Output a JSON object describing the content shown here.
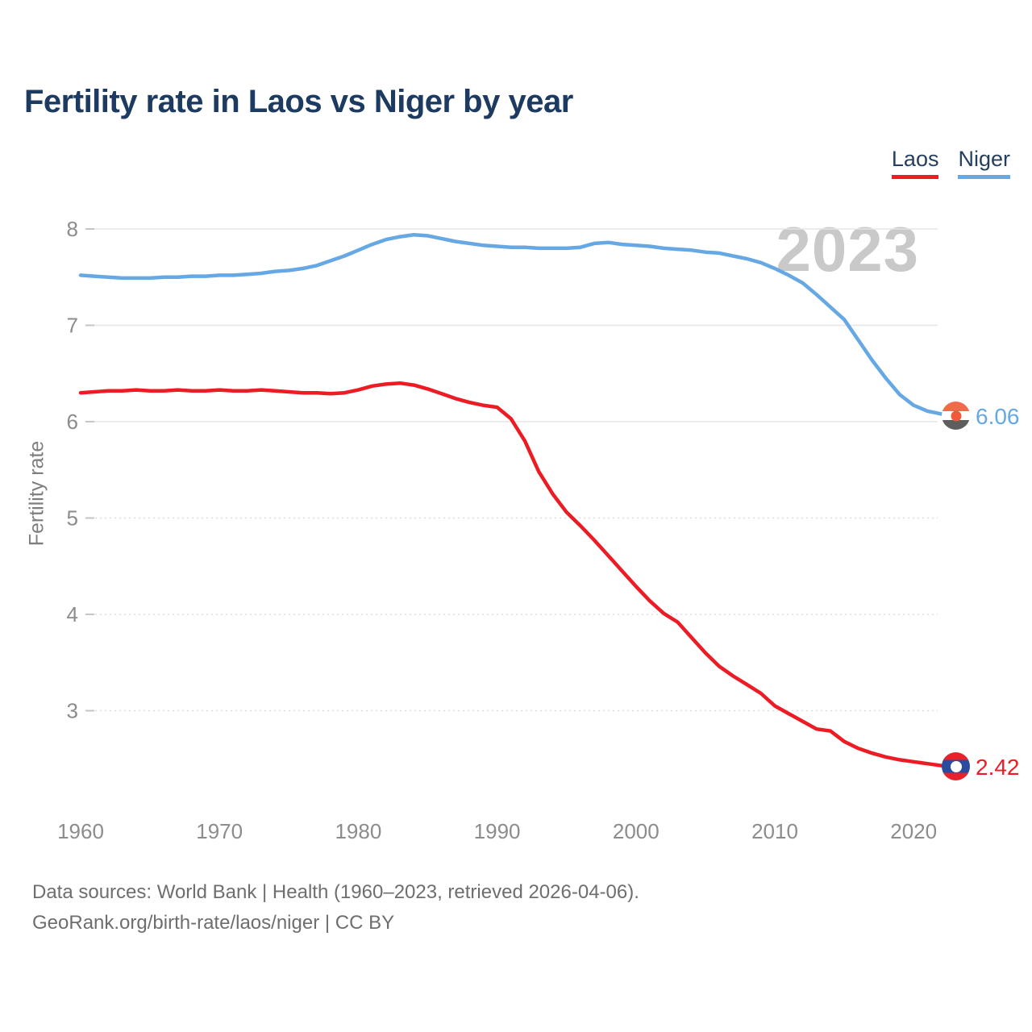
{
  "header": {
    "title": "Fertility rate in Laos vs Niger by year"
  },
  "legend": {
    "laos": {
      "label": "Laos"
    },
    "niger": {
      "label": "Niger"
    }
  },
  "watermark": "2023",
  "end_labels": {
    "niger": {
      "value": "6.06"
    },
    "laos": {
      "value": "2.42"
    }
  },
  "icons": {
    "laos": "laos-flag-icon",
    "niger": "niger-flag-icon"
  },
  "footer": {
    "line1": "Data sources: World Bank | Health (1960–2023, retrieved 2026-04-06).",
    "line2": "GeoRank.org/birth-rate/laos/niger | CC BY"
  },
  "chart_data": {
    "type": "line",
    "title": "Fertility rate in Laos vs Niger by year",
    "xlabel": "",
    "ylabel": "Fertility rate",
    "xlim": [
      1960,
      2023
    ],
    "ylim": [
      2.3,
      8.1
    ],
    "yticks": [
      8,
      7,
      6,
      5,
      4,
      3
    ],
    "xticks": [
      1960,
      1970,
      1980,
      1990,
      2000,
      2010,
      2020
    ],
    "grid": "horizontal",
    "legend_position": "top-right",
    "x": [
      1960,
      1961,
      1962,
      1963,
      1964,
      1965,
      1966,
      1967,
      1968,
      1969,
      1970,
      1971,
      1972,
      1973,
      1974,
      1975,
      1976,
      1977,
      1978,
      1979,
      1980,
      1981,
      1982,
      1983,
      1984,
      1985,
      1986,
      1987,
      1988,
      1989,
      1990,
      1991,
      1992,
      1993,
      1994,
      1995,
      1996,
      1997,
      1998,
      1999,
      2000,
      2001,
      2002,
      2003,
      2004,
      2005,
      2006,
      2007,
      2008,
      2009,
      2010,
      2011,
      2012,
      2013,
      2014,
      2015,
      2016,
      2017,
      2018,
      2019,
      2020,
      2021,
      2022,
      2023
    ],
    "series": [
      {
        "name": "Laos",
        "color": "#ed1c24",
        "end_label": "2.42",
        "values": [
          6.3,
          6.31,
          6.32,
          6.32,
          6.33,
          6.32,
          6.32,
          6.33,
          6.32,
          6.32,
          6.33,
          6.32,
          6.32,
          6.33,
          6.32,
          6.31,
          6.3,
          6.3,
          6.29,
          6.3,
          6.33,
          6.37,
          6.39,
          6.4,
          6.38,
          6.34,
          6.29,
          6.24,
          6.2,
          6.17,
          6.15,
          6.03,
          5.8,
          5.48,
          5.25,
          5.06,
          4.92,
          4.77,
          4.61,
          4.45,
          4.29,
          4.14,
          4.01,
          3.92,
          3.76,
          3.6,
          3.46,
          3.36,
          3.27,
          3.18,
          3.05,
          2.97,
          2.89,
          2.81,
          2.79,
          2.68,
          2.61,
          2.56,
          2.52,
          2.49,
          2.47,
          2.45,
          2.43,
          2.42
        ]
      },
      {
        "name": "Niger",
        "color": "#66a8e4",
        "end_label": "6.06",
        "values": [
          7.52,
          7.51,
          7.5,
          7.49,
          7.49,
          7.49,
          7.5,
          7.5,
          7.51,
          7.51,
          7.52,
          7.52,
          7.53,
          7.54,
          7.56,
          7.57,
          7.59,
          7.62,
          7.67,
          7.72,
          7.78,
          7.84,
          7.89,
          7.92,
          7.94,
          7.93,
          7.9,
          7.87,
          7.85,
          7.83,
          7.82,
          7.81,
          7.81,
          7.8,
          7.8,
          7.8,
          7.81,
          7.85,
          7.86,
          7.84,
          7.83,
          7.82,
          7.8,
          7.79,
          7.78,
          7.76,
          7.75,
          7.72,
          7.69,
          7.65,
          7.59,
          7.52,
          7.44,
          7.32,
          7.19,
          7.06,
          6.85,
          6.64,
          6.45,
          6.28,
          6.17,
          6.11,
          6.08,
          6.06
        ]
      }
    ]
  }
}
